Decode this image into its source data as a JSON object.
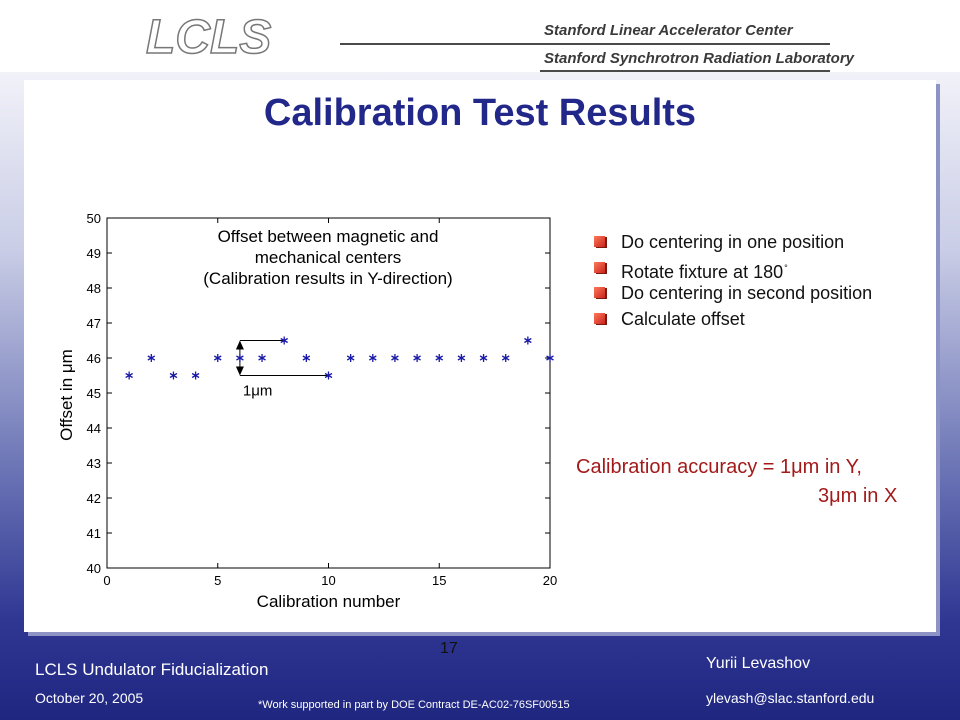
{
  "header": {
    "logo_text": "LCLS",
    "lab_line1": "Stanford Linear Accelerator Center",
    "lab_line2": "Stanford Synchrotron Radiation Laboratory"
  },
  "title": "Calibration Test Results",
  "bullets": [
    {
      "text": "Do centering in one position",
      "sup": ""
    },
    {
      "text": "Rotate fixture at 180",
      "sup": "°"
    },
    {
      "text": "Do centering in second position",
      "sup": ""
    },
    {
      "text": "Calculate offset",
      "sup": ""
    }
  ],
  "accuracy_line1": "Calibration accuracy = 1μm in Y,",
  "accuracy_line2": "3μm in X",
  "page_number": "17",
  "footer": {
    "title": "LCLS Undulator Fiducialization",
    "date": "October 20, 2005",
    "author": "Yurii Levashov",
    "email": "ylevash@slac.stanford.edu",
    "note": "*Work supported in part by DOE Contract DE-AC02-76SF00515"
  },
  "colors": {
    "title": "#22288a",
    "marker": "#1a1aa8",
    "accuracy": "#a31a1a",
    "bullet": "#d0261c"
  },
  "chart_data": {
    "type": "scatter",
    "title_lines": [
      "Offset between magnetic and",
      "mechanical centers",
      "(Calibration results in Y-direction)"
    ],
    "xlabel": "Calibration number",
    "ylabel": "Offset in μm",
    "xlim": [
      0,
      20
    ],
    "ylim": [
      40,
      50
    ],
    "xticks": [
      0,
      5,
      10,
      15,
      20
    ],
    "yticks": [
      40,
      41,
      42,
      43,
      44,
      45,
      46,
      47,
      48,
      49,
      50
    ],
    "marker": "asterisk",
    "grid": false,
    "series": [
      {
        "x": [
          1,
          2,
          3,
          4,
          5,
          6,
          7,
          8,
          9,
          10,
          11,
          12,
          13,
          14,
          15,
          16,
          17,
          18,
          19,
          20
        ],
        "y": [
          45.5,
          46,
          45.5,
          45.5,
          46,
          46,
          46,
          46.5,
          46,
          45.5,
          46,
          46,
          46,
          46,
          46,
          46,
          46,
          46,
          46.5,
          46
        ]
      }
    ],
    "annotation": {
      "text": "1μm",
      "x": 6,
      "y_range": [
        45.5,
        46.5
      ],
      "line_ends": [
        8,
        10
      ]
    }
  }
}
